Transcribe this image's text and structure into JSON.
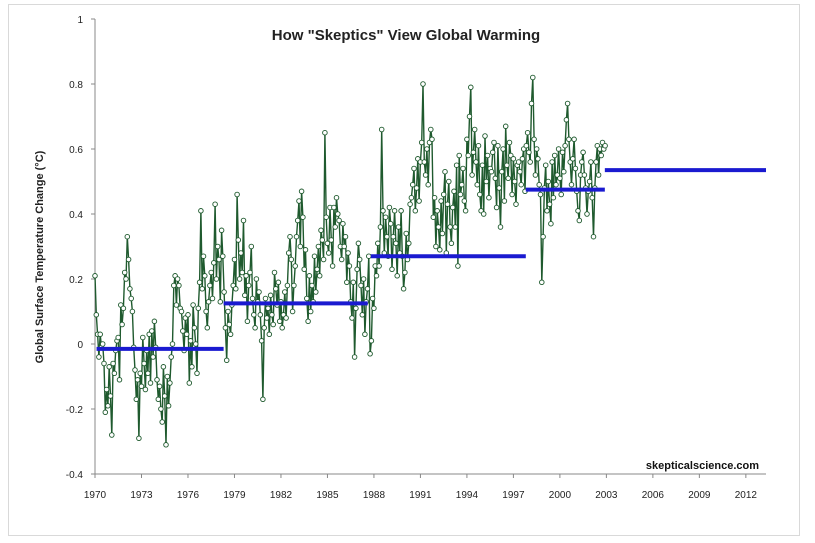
{
  "chart_data": {
    "type": "line",
    "title": "How \"Skeptics\" View Global Warming",
    "ylabel": "Global Surface Temperature Change (°C)",
    "xlabel": "",
    "credit": "skepticalscience.com",
    "xlim": [
      1970,
      2013.3
    ],
    "ylim": [
      -0.4,
      1.0
    ],
    "x_ticks": [
      "1970",
      "1973",
      "1976",
      "1979",
      "1982",
      "1985",
      "1988",
      "1991",
      "1994",
      "1997",
      "2000",
      "2003",
      "2006",
      "2009",
      "2012"
    ],
    "y_ticks": [
      "-0.4",
      "-0.2",
      "0",
      "0.2",
      "0.4",
      "0.6",
      "0.8",
      "1"
    ],
    "grid": false,
    "legend": "none",
    "colors": {
      "series": "#1f5a2e",
      "trend": "#1a1ad0",
      "marker_fill": "#ffffff"
    },
    "series": [
      {
        "x_start": 1970.0,
        "x_step": 0.0833333,
        "values": [
          0.21,
          0.09,
          0.03,
          -0.04,
          0.03,
          -0.01,
          0.0,
          -0.06,
          -0.21,
          -0.14,
          -0.19,
          -0.07,
          -0.16,
          -0.28,
          -0.06,
          -0.09,
          -0.02,
          0.01,
          0.02,
          -0.11,
          0.12,
          0.06,
          0.11,
          0.22,
          0.2,
          0.33,
          0.26,
          0.17,
          0.14,
          0.1,
          -0.01,
          -0.08,
          -0.17,
          -0.11,
          -0.29,
          -0.09,
          -0.13,
          0.02,
          -0.06,
          -0.14,
          -0.02,
          -0.09,
          0.03,
          -0.12,
          0.04,
          -0.04,
          0.07,
          -0.01,
          -0.11,
          -0.17,
          -0.13,
          -0.2,
          -0.24,
          -0.07,
          -0.16,
          -0.31,
          -0.1,
          -0.19,
          -0.12,
          -0.04,
          0.0,
          0.18,
          0.21,
          0.12,
          0.2,
          0.18,
          0.11,
          0.1,
          0.04,
          -0.02,
          0.08,
          0.03,
          0.09,
          -0.12,
          0.01,
          -0.07,
          0.12,
          0.05,
          0.0,
          -0.09,
          0.11,
          0.19,
          0.41,
          0.17,
          0.27,
          0.21,
          0.1,
          0.05,
          0.13,
          0.18,
          0.22,
          0.14,
          0.25,
          0.43,
          0.2,
          0.3,
          0.26,
          0.13,
          0.35,
          0.27,
          0.16,
          0.05,
          -0.05,
          0.1,
          0.06,
          0.03,
          0.12,
          0.18,
          0.26,
          0.17,
          0.46,
          0.32,
          0.2,
          0.28,
          0.22,
          0.38,
          0.15,
          0.21,
          0.07,
          0.18,
          0.22,
          0.3,
          0.14,
          0.09,
          0.05,
          0.2,
          0.13,
          0.16,
          0.09,
          0.01,
          -0.17,
          0.05,
          0.14,
          0.08,
          0.11,
          0.03,
          0.15,
          0.09,
          0.06,
          0.22,
          0.17,
          0.12,
          0.19,
          0.07,
          0.13,
          0.05,
          0.09,
          0.16,
          0.08,
          0.18,
          0.28,
          0.33,
          0.26,
          0.1,
          0.18,
          0.24,
          0.33,
          0.38,
          0.44,
          0.3,
          0.47,
          0.39,
          0.23,
          0.29,
          0.14,
          0.07,
          0.21,
          0.1,
          0.18,
          0.13,
          0.27,
          0.16,
          0.23,
          0.3,
          0.21,
          0.35,
          0.32,
          0.26,
          0.65,
          0.39,
          0.31,
          0.28,
          0.42,
          0.32,
          0.24,
          0.42,
          0.36,
          0.45,
          0.4,
          0.38,
          0.3,
          0.26,
          0.37,
          0.3,
          0.33,
          0.19,
          0.28,
          0.24,
          0.13,
          0.08,
          0.19,
          -0.04,
          0.11,
          0.23,
          0.31,
          0.26,
          0.18,
          0.09,
          0.2,
          0.03,
          0.13,
          0.17,
          0.27,
          -0.03,
          0.01,
          0.14,
          0.11,
          0.24,
          0.21,
          0.31,
          0.24,
          0.36,
          0.66,
          0.41,
          0.28,
          0.39,
          0.33,
          0.27,
          0.42,
          0.37,
          0.23,
          0.33,
          0.41,
          0.31,
          0.21,
          0.36,
          0.28,
          0.41,
          0.27,
          0.17,
          0.22,
          0.34,
          0.26,
          0.31,
          0.43,
          0.45,
          0.49,
          0.54,
          0.41,
          0.48,
          0.57,
          0.44,
          0.56,
          0.62,
          0.8,
          0.56,
          0.52,
          0.6,
          0.49,
          0.62,
          0.66,
          0.63,
          0.39,
          0.45,
          0.3,
          0.41,
          0.36,
          0.29,
          0.44,
          0.34,
          0.46,
          0.53,
          0.28,
          0.43,
          0.5,
          0.36,
          0.31,
          0.42,
          0.47,
          0.36,
          0.55,
          0.24,
          0.58,
          0.46,
          0.49,
          0.54,
          0.44,
          0.41,
          0.63,
          0.58,
          0.7,
          0.79,
          0.52,
          0.59,
          0.66,
          0.56,
          0.49,
          0.61,
          0.46,
          0.41,
          0.55,
          0.4,
          0.64,
          0.5,
          0.58,
          0.45,
          0.54,
          0.53,
          0.59,
          0.62,
          0.51,
          0.42,
          0.61,
          0.48,
          0.36,
          0.53,
          0.6,
          0.44,
          0.67,
          0.55,
          0.51,
          0.62,
          0.58,
          0.46,
          0.57,
          0.5,
          0.43,
          0.55,
          0.56,
          0.53,
          0.49,
          0.57,
          0.6,
          0.47,
          0.61,
          0.65,
          0.59,
          0.56,
          0.74,
          0.82,
          0.63,
          0.52,
          0.6,
          0.57,
          0.49,
          0.46,
          0.19,
          0.33,
          0.48,
          0.55,
          0.41,
          0.5,
          0.43,
          0.37,
          0.56,
          0.45,
          0.58,
          0.49,
          0.52,
          0.6,
          0.51,
          0.46,
          0.59,
          0.53,
          0.61,
          0.69,
          0.74,
          0.63,
          0.56,
          0.49,
          0.57,
          0.63,
          0.54,
          0.47,
          0.41,
          0.38,
          0.52,
          0.56,
          0.59,
          0.52,
          0.48,
          0.4,
          0.47,
          0.5,
          0.56,
          0.45,
          0.33,
          0.48,
          0.56,
          0.61,
          0.52,
          0.6,
          0.58,
          0.62,
          0.6,
          0.61
        ]
      }
    ],
    "trend_segments": [
      {
        "x0": 1970.1,
        "x1": 1978.3,
        "y": -0.015
      },
      {
        "x0": 1978.3,
        "x1": 1987.6,
        "y": 0.125
      },
      {
        "x0": 1987.8,
        "x1": 1997.8,
        "y": 0.27
      },
      {
        "x0": 1997.8,
        "x1": 2002.9,
        "y": 0.475
      },
      {
        "x0": 2002.9,
        "x1": 2013.3,
        "y": 0.535
      }
    ]
  }
}
